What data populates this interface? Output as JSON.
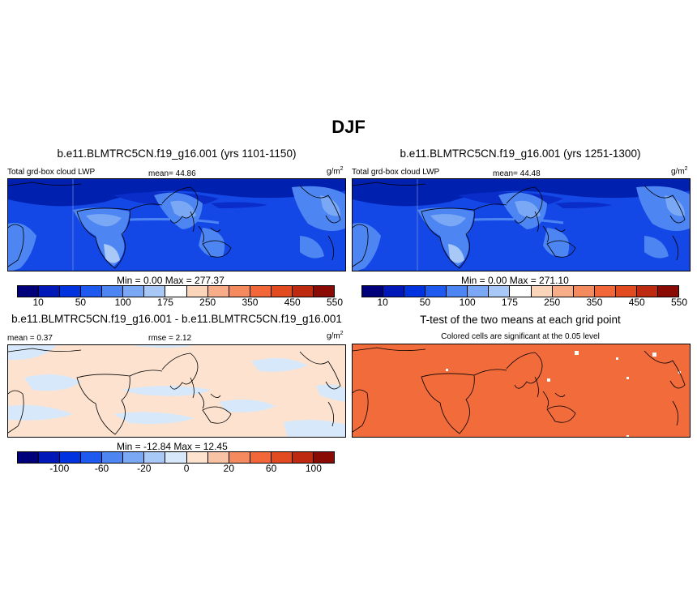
{
  "title": "DJF",
  "panels": [
    {
      "id": "top-left",
      "title": "b.e11.BLMTRC5CN.f19_g16.001 (yrs 1101-1150)",
      "left_label": "Total grd-box cloud LWP",
      "center_label": "mean=  44.86",
      "units_base": "g/m",
      "units_exp": "2",
      "minmax": "Min =   0.00 Max = 277.37"
    },
    {
      "id": "top-right",
      "title": "b.e11.BLMTRC5CN.f19_g16.001 (yrs 1251-1300)",
      "left_label": "Total grd-box cloud LWP",
      "center_label": "mean=  44.48",
      "units_base": "g/m",
      "units_exp": "2",
      "minmax": "Min =   0.00 Max = 271.10"
    },
    {
      "id": "bottom-left",
      "title": "b.e11.BLMTRC5CN.f19_g16.001 - b.e11.BLMTRC5CN.f19_g16.001",
      "left_label": "mean =   0.37",
      "center_label": "rmse =   2.12",
      "units_base": "g/m",
      "units_exp": "2",
      "minmax": "Min = -12.84 Max =  12.45"
    },
    {
      "id": "bottom-right",
      "title": "T-test of the two means at each grid point",
      "subtitle": "Colored cells are significant at the 0.05 level"
    }
  ],
  "colorbar_lwp": {
    "colors": [
      "#00007a",
      "#0018b8",
      "#0033e0",
      "#1f5af0",
      "#4d86f2",
      "#7aa8f5",
      "#a8c8f7",
      "#ffffff",
      "#fbd5b9",
      "#f7ae88",
      "#f58a5e",
      "#f2673a",
      "#e24a20",
      "#bd2a10",
      "#8a0a04"
    ],
    "labels": [
      "10",
      "50",
      "100",
      "175",
      "250",
      "350",
      "450",
      "550"
    ]
  },
  "colorbar_diff": {
    "colors": [
      "#00007a",
      "#0018b8",
      "#0033e0",
      "#1f5af0",
      "#4d86f2",
      "#7aa8f5",
      "#a8c8f7",
      "#d6e8fa",
      "#fde3cf",
      "#f7c3a4",
      "#f58a5e",
      "#f2673a",
      "#e24a20",
      "#bd2a10",
      "#8a0a04"
    ],
    "labels": [
      "-100",
      "-60",
      "-20",
      "0",
      "20",
      "60",
      "100"
    ]
  },
  "map_colors": {
    "lwp_base": "#1448e6",
    "lwp_dark": "#0020b0",
    "lwp_light": "#4d86f2",
    "lwp_lighter": "#7aa8f5",
    "diff_pos": "#fde3cf",
    "diff_neg": "#d6e8fa",
    "ttest": "#f26b3a"
  }
}
